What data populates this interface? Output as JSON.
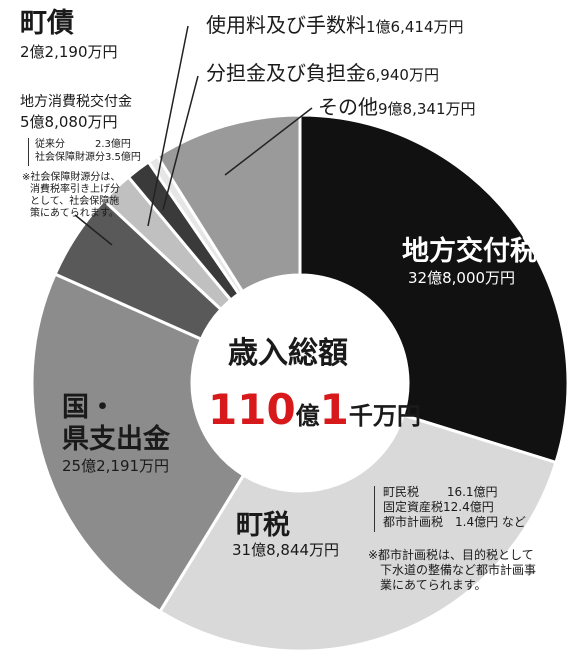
{
  "chart_data": {
    "type": "pie",
    "title": "歳入総額",
    "total": {
      "num1": "110",
      "unit1": "億",
      "num2": "1",
      "unit2": "千万円"
    },
    "slices": [
      {
        "name": "地方交付税",
        "label": "32億8,000万円",
        "value": 32.8,
        "color": "#111111"
      },
      {
        "name": "町税",
        "label": "31億8,844万円",
        "value": 31.8844,
        "color": "#d9d9d9"
      },
      {
        "name": "国・県支出金",
        "label": "25億2,191万円",
        "value": 25.2191,
        "color": "#8c8c8c"
      },
      {
        "name": "地方消費税交付金",
        "label": "5億8,080万円",
        "value": 5.808,
        "color": "#595959"
      },
      {
        "name": "町債",
        "label": "2億2,190万円",
        "value": 2.219,
        "color": "#c0c0c0"
      },
      {
        "name": "使用料及び手数料",
        "label": "1億6,414万円",
        "value": 1.6414,
        "color": "#3a3a3a"
      },
      {
        "name": "分担金及び負担金",
        "label": "6,940万円",
        "value": 0.694,
        "color": "#e6e6e6"
      },
      {
        "name": "その他",
        "label": "9億8,341万円",
        "value": 9.8341,
        "color": "#9a9a9a"
      }
    ]
  },
  "labels": {
    "kofuzei_name": "地方交付税",
    "kofuzei_value": "32億8,000万円",
    "chozei_name": "町税",
    "chozei_value": "31億8,844万円",
    "kuni_line1": "国・",
    "kuni_line2": "県支出金",
    "kuni_value": "25億2,191万円",
    "shohi_name": "地方消費税交付金",
    "shohi_value": "5億8,080万円",
    "shohi_note1": "従来分　　　2.3億円",
    "shohi_note2": "社会保障財源分3.5億円",
    "shohi_foot1": "※社会保障財源分は、",
    "shohi_foot2": "消費税率引き上げ分",
    "shohi_foot3": "として、社会保障施",
    "shohi_foot4": "策にあてられます。",
    "chosai_name": "町債",
    "chosai_value": "2億2,190万円",
    "shiyo_name": "使用料及び手数料",
    "shiyo_value": "1億6,414万円",
    "buntan_name": "分担金及び負担金",
    "buntan_value": "6,940万円",
    "sonota_name": "その他",
    "sonota_value": "9億8,341万円",
    "chozei_note1": "町民税　　 16.1億円",
    "chozei_note2": "固定資産税12.4億円",
    "chozei_note3": "都市計画税　1.4億円 など",
    "chozei_foot1": "※都市計画税は、目的税として",
    "chozei_foot2": "下水道の整備など都市計画事",
    "chozei_foot3": "業にあてられます。"
  }
}
